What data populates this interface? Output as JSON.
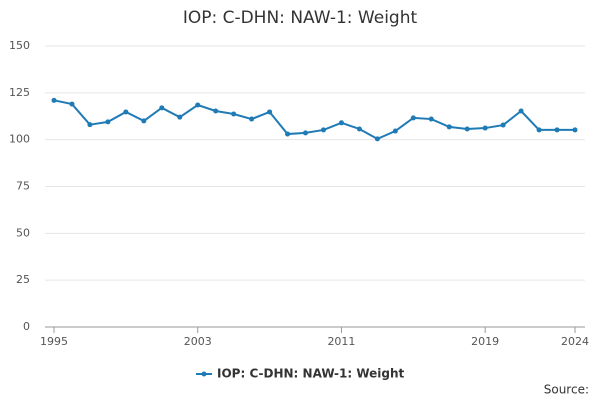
{
  "chart_data": {
    "type": "line",
    "title": "IOP: C-DHN: NAW-1: Weight",
    "source": "Source:",
    "x": [
      1995,
      1996,
      1997,
      1998,
      1999,
      2000,
      2001,
      2002,
      2003,
      2004,
      2005,
      2006,
      2007,
      2008,
      2009,
      2010,
      2011,
      2012,
      2013,
      2014,
      2015,
      2016,
      2017,
      2018,
      2019,
      2020,
      2021,
      2022,
      2023,
      2024
    ],
    "series": [
      {
        "name": "IOP: C-DHN: NAW-1: Weight",
        "color": "#1f7bb6",
        "values": [
          121,
          119,
          108,
          109.5,
          114.8,
          110,
          117,
          112,
          118.5,
          115.3,
          113.7,
          111,
          114.8,
          103,
          103.6,
          105.2,
          109,
          105.7,
          100.4,
          104.6,
          111.6,
          111,
          106.8,
          105.7,
          106.2,
          107.8,
          115.3,
          105.2,
          105.2,
          105.2
        ]
      }
    ],
    "xlim": [
      1995,
      2024
    ],
    "xticks": [
      1995,
      2003,
      2011,
      2019,
      2024
    ],
    "ylim": [
      0,
      150
    ],
    "yticks": [
      0,
      25,
      50,
      75,
      100,
      125,
      150
    ],
    "grid": true
  }
}
